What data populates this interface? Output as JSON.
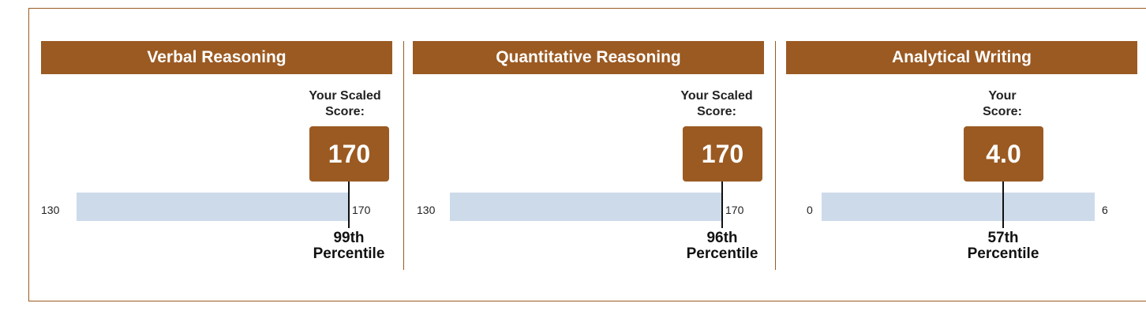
{
  "sections": [
    {
      "title": "Verbal Reasoning",
      "score_label_line1": "Your Scaled",
      "score_label_line2": "Score:",
      "score": "170",
      "score_value": 170,
      "scale_min": "130",
      "scale_max": "170",
      "percentile_line1": "99th",
      "percentile_line2": "Percentile"
    },
    {
      "title": "Quantitative Reasoning",
      "score_label_line1": "Your Scaled",
      "score_label_line2": "Score:",
      "score": "170",
      "score_value": 170,
      "scale_min": "130",
      "scale_max": "170",
      "percentile_line1": "96th",
      "percentile_line2": "Percentile"
    },
    {
      "title": "Analytical Writing",
      "score_label_line1": "Your",
      "score_label_line2": "Score:",
      "score": "4.0",
      "score_value": 4.0,
      "scale_min": "0",
      "scale_max": "6",
      "percentile_line1": "57th",
      "percentile_line2": "Percentile"
    }
  ],
  "colors": {
    "accent": "#9b5a22",
    "bar": "#cddaea"
  }
}
